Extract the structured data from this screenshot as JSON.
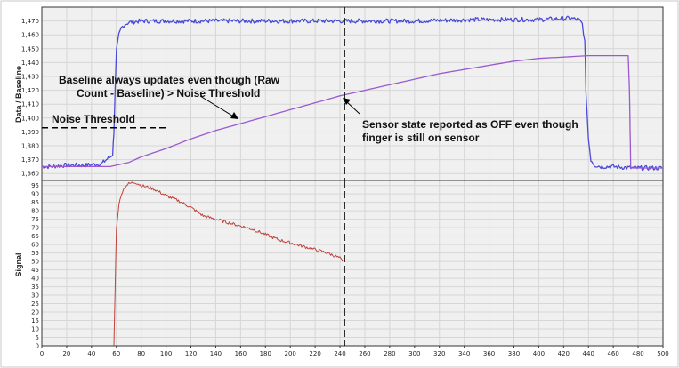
{
  "chart_data": [
    {
      "type": "line",
      "ylabel": "Data / Baseline",
      "xlim": [
        0,
        500
      ],
      "ylim": [
        1355,
        1480
      ],
      "yticks": [
        1360,
        1370,
        1380,
        1390,
        1400,
        1410,
        1420,
        1430,
        1440,
        1450,
        1460,
        1470
      ],
      "ytick_labels": [
        "1,360",
        "1,370",
        "1,380",
        "1,390",
        "1,400",
        "1,410",
        "1,420",
        "1,430",
        "1,440",
        "1,450",
        "1,460",
        "1,470"
      ],
      "grid": true,
      "series": [
        {
          "color": "#4a4ad8",
          "style": "noisy",
          "x": [
            0,
            5,
            20,
            35,
            48,
            52,
            55,
            57,
            58,
            59,
            60,
            62,
            64,
            66,
            68,
            70,
            80,
            100,
            150,
            200,
            250,
            300,
            350,
            400,
            425,
            432,
            435,
            437,
            438,
            440,
            442,
            445,
            450,
            460,
            475,
            500
          ],
          "y": [
            1365,
            1365,
            1366,
            1366,
            1367,
            1370,
            1372,
            1374,
            1390,
            1420,
            1448,
            1460,
            1465,
            1467,
            1468,
            1469,
            1470,
            1470,
            1470,
            1470,
            1470,
            1470,
            1471,
            1471,
            1472,
            1471,
            1468,
            1455,
            1420,
            1385,
            1370,
            1366,
            1365,
            1365,
            1364,
            1364
          ]
        },
        {
          "color": "#9b59d0",
          "style": "smooth",
          "x": [
            0,
            20,
            40,
            55,
            60,
            70,
            80,
            100,
            120,
            140,
            160,
            180,
            200,
            220,
            240,
            260,
            280,
            300,
            320,
            340,
            360,
            380,
            400,
            420,
            440,
            460,
            472,
            473,
            474,
            500
          ],
          "y": [
            1365,
            1365,
            1365,
            1365,
            1366,
            1368,
            1372,
            1378,
            1385,
            1391,
            1396,
            1401,
            1406,
            1411,
            1416,
            1420,
            1424,
            1428,
            1432,
            1435,
            1438,
            1441,
            1443,
            1444,
            1445,
            1445,
            1445,
            1420,
            1364,
            1364
          ]
        }
      ],
      "noise_threshold": 1393,
      "cursor_x": 245
    },
    {
      "type": "line",
      "ylabel": "Signal",
      "xlim": [
        0,
        500
      ],
      "ylim": [
        0,
        98
      ],
      "yticks": [
        0,
        5,
        10,
        15,
        20,
        25,
        30,
        35,
        40,
        45,
        50,
        55,
        60,
        65,
        70,
        75,
        80,
        85,
        90,
        95
      ],
      "xticks": [
        0,
        20,
        40,
        60,
        80,
        100,
        120,
        140,
        160,
        180,
        200,
        220,
        240,
        260,
        280,
        300,
        320,
        340,
        360,
        380,
        400,
        420,
        440,
        460,
        480,
        500
      ],
      "grid": true,
      "series": [
        {
          "color": "#c0413a",
          "style": "noisy",
          "x": [
            58,
            59,
            60,
            62,
            64,
            66,
            68,
            70,
            75,
            80,
            90,
            100,
            110,
            120,
            130,
            140,
            150,
            160,
            170,
            180,
            190,
            200,
            210,
            220,
            230,
            240,
            241,
            242
          ],
          "y": [
            0,
            35,
            70,
            83,
            90,
            93,
            95,
            96,
            97,
            95,
            93,
            89,
            86,
            82,
            77,
            75,
            73,
            71,
            69,
            66,
            63,
            61,
            59,
            57,
            55,
            52,
            51,
            50
          ]
        }
      ],
      "cursor_x": 245
    }
  ],
  "annotations": {
    "noise_threshold": "Noise Threshold",
    "baseline_line1": "Baseline always updates even though (Raw",
    "baseline_line2": "Count - Baseline) > Noise Threshold",
    "sensor_line1": "Sensor state reported as OFF even though",
    "sensor_line2": "finger is still on sensor"
  }
}
